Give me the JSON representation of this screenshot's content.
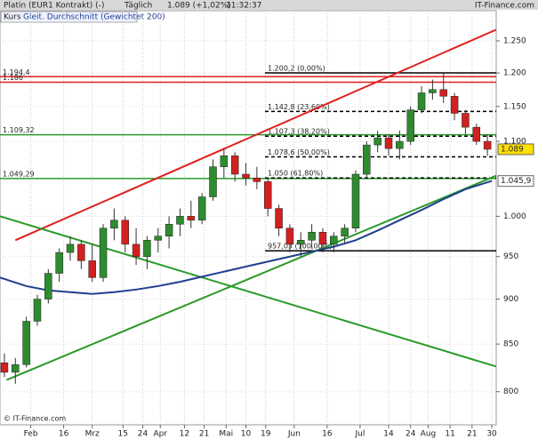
{
  "header": {
    "title": "Platin (EUR1 Kontrakt) (-)",
    "period": "Täglich",
    "quote": "1.089 (+1,02%)",
    "time": "11:32:37",
    "brand": "IT-Finance.com"
  },
  "legend": {
    "price": "Kurs",
    "ma": "Gleit. Durchschnitt (Gewichtet 200)"
  },
  "footer": "© IT-Finance.com",
  "chart_data": {
    "type": "candlestick",
    "log_scale": true,
    "grid": true,
    "xlim": [
      18,
      244
    ],
    "ylim": [
      767,
      1299
    ],
    "xticks": [
      {
        "value": 32,
        "label": "Feb"
      },
      {
        "value": 47,
        "label": "16"
      },
      {
        "value": 60,
        "label": "Mrz"
      },
      {
        "value": 74,
        "label": "15"
      },
      {
        "value": 83,
        "label": "24"
      },
      {
        "value": 91,
        "label": "Apr"
      },
      {
        "value": 102,
        "label": "12"
      },
      {
        "value": 111,
        "label": "21"
      },
      {
        "value": 121,
        "label": "Mai"
      },
      {
        "value": 130,
        "label": "10"
      },
      {
        "value": 139,
        "label": "19"
      },
      {
        "value": 152,
        "label": "Jun"
      },
      {
        "value": 167,
        "label": "16"
      },
      {
        "value": 182,
        "label": "Jul"
      },
      {
        "value": 195,
        "label": "14"
      },
      {
        "value": 205,
        "label": "24"
      },
      {
        "value": 213,
        "label": "Aug"
      },
      {
        "value": 223,
        "label": "11"
      },
      {
        "value": 233,
        "label": "21"
      },
      {
        "value": 242,
        "label": "30"
      }
    ],
    "yticks": [
      {
        "value": 1250,
        "label": "1.250"
      },
      {
        "value": 1200,
        "label": "1.200"
      },
      {
        "value": 1150,
        "label": "1.150"
      },
      {
        "value": 1100,
        "label": "1.100"
      },
      {
        "value": 1000,
        "label": "1.000"
      },
      950,
      900,
      850,
      800
    ],
    "x": [
      20,
      25,
      30,
      35,
      40,
      45,
      50,
      55,
      60,
      65,
      70,
      75,
      80,
      85,
      90,
      95,
      100,
      105,
      110,
      115,
      120,
      125,
      130,
      135,
      140,
      145,
      150,
      155,
      160,
      165,
      170,
      175,
      180,
      185,
      190,
      195,
      200,
      205,
      210,
      215,
      220,
      225,
      230,
      235,
      240
    ],
    "open": [
      830,
      820,
      828,
      875,
      900,
      930,
      955,
      965,
      945,
      925,
      985,
      995,
      965,
      950,
      970,
      975,
      990,
      1000,
      995,
      1025,
      1065,
      1080,
      1055,
      1050,
      1045,
      1010,
      985,
      965,
      970,
      980,
      965,
      975,
      985,
      1055,
      1095,
      1105,
      1090,
      1100,
      1145,
      1170,
      1175,
      1165,
      1140,
      1120,
      1100
    ],
    "high": [
      840,
      835,
      880,
      905,
      935,
      960,
      975,
      970,
      965,
      990,
      1010,
      1000,
      985,
      975,
      985,
      1000,
      1010,
      1020,
      1030,
      1075,
      1090,
      1085,
      1070,
      1065,
      1050,
      1015,
      990,
      980,
      990,
      985,
      980,
      990,
      1060,
      1100,
      1115,
      1110,
      1115,
      1150,
      1180,
      1190,
      1200,
      1170,
      1145,
      1125,
      1110
    ],
    "low": [
      815,
      808,
      825,
      870,
      895,
      920,
      945,
      935,
      920,
      920,
      970,
      955,
      940,
      935,
      955,
      960,
      975,
      985,
      990,
      1020,
      1050,
      1045,
      1040,
      1035,
      1000,
      975,
      955,
      950,
      960,
      955,
      955,
      965,
      980,
      1050,
      1085,
      1080,
      1075,
      1095,
      1140,
      1160,
      1155,
      1130,
      1110,
      1095,
      1080
    ],
    "close": [
      820,
      828,
      875,
      900,
      930,
      955,
      965,
      945,
      925,
      985,
      995,
      965,
      950,
      970,
      975,
      990,
      1000,
      995,
      1025,
      1065,
      1080,
      1055,
      1050,
      1045,
      1010,
      985,
      965,
      970,
      980,
      965,
      975,
      985,
      1055,
      1095,
      1105,
      1090,
      1100,
      1145,
      1170,
      1175,
      1165,
      1140,
      1120,
      1100,
      1089
    ],
    "up_color": "#2e8b2e",
    "down_color": "#d02020",
    "ma": {
      "color": "#1f3f8f",
      "x": [
        18,
        30,
        40,
        50,
        60,
        70,
        80,
        90,
        100,
        110,
        120,
        130,
        140,
        150,
        160,
        170,
        180,
        190,
        200,
        210,
        220,
        230,
        242
      ],
      "values": [
        925,
        915,
        910,
        908,
        906,
        908,
        911,
        915,
        920,
        926,
        932,
        938,
        944,
        950,
        956,
        962,
        970,
        982,
        995,
        1008,
        1022,
        1035,
        1046
      ]
    },
    "levels": [
      {
        "value": 1194.4,
        "label": "1.194,4",
        "color": "#e02020",
        "style": "solid",
        "span": "full"
      },
      {
        "value": 1186,
        "label": "1.186",
        "color": "#e02020",
        "style": "solid",
        "span": "full"
      },
      {
        "value": 1109.32,
        "label": "1.109,32",
        "color": "#2a9a2a",
        "style": "solid",
        "span": "full"
      },
      {
        "value": 1049.29,
        "label": "1.049,29",
        "color": "#2a9a2a",
        "style": "solid",
        "span": "full"
      },
      {
        "value": 1200.2,
        "label": "1.200,2 (0,00%)",
        "color": "#000000",
        "style": "solid",
        "span": "fib"
      },
      {
        "value": 1142.8,
        "label": "1.142,8 (23,60%)",
        "color": "#000000",
        "style": "dashed",
        "span": "fib"
      },
      {
        "value": 1107.3,
        "label": "1.107,3 (38,20%)",
        "color": "#000000",
        "style": "dashed",
        "span": "fib"
      },
      {
        "value": 1078.6,
        "label": "1.078,6 (50,00%)",
        "color": "#000000",
        "style": "dashed",
        "span": "fib"
      },
      {
        "value": 1050,
        "label": "1.050 (61,80%)",
        "color": "#000000",
        "style": "dashed",
        "span": "fib"
      },
      {
        "value": 957.03,
        "label": "957,03 (100,00%)",
        "color": "#000000",
        "style": "solid",
        "span": "fib"
      }
    ],
    "trendlines": [
      {
        "color": "#e02020",
        "x": [
          25,
          244
        ],
        "y": [
          970,
          1268
        ]
      },
      {
        "color": "#2a9a2a",
        "x": [
          18,
          244
        ],
        "y": [
          1000,
          826
        ]
      },
      {
        "color": "#2a9a2a",
        "x": [
          21,
          244
        ],
        "y": [
          812,
          1053
        ]
      }
    ],
    "last_price": {
      "value": 1089,
      "label": "1.089",
      "color": "#ffe000"
    },
    "ma_last": {
      "value": 1045.9,
      "label": "1.045,9"
    }
  }
}
